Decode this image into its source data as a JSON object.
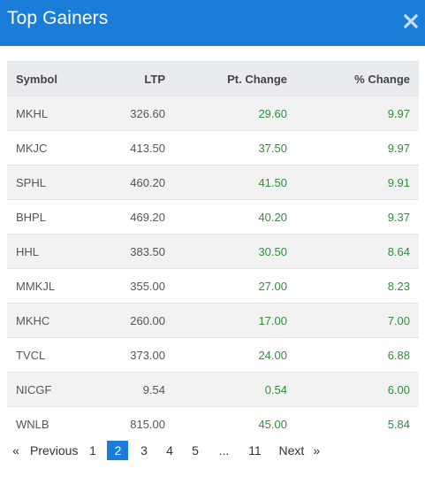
{
  "modal": {
    "title": "Top Gainers",
    "header_color": "#1a7dd7",
    "close_icon": "close-icon"
  },
  "table": {
    "headers": {
      "symbol": "Symbol",
      "ltp": "LTP",
      "pt_change": "Pt. Change",
      "pct_change": "% Change"
    },
    "positive_color": "#2f8f3a",
    "rows": [
      {
        "symbol": "MKHL",
        "ltp": "326.60",
        "pt_change": "29.60",
        "pct_change": "9.97"
      },
      {
        "symbol": "MKJC",
        "ltp": "413.50",
        "pt_change": "37.50",
        "pct_change": "9.97"
      },
      {
        "symbol": "SPHL",
        "ltp": "460.20",
        "pt_change": "41.50",
        "pct_change": "9.91"
      },
      {
        "symbol": "BHPL",
        "ltp": "469.20",
        "pt_change": "40.20",
        "pct_change": "9.37"
      },
      {
        "symbol": "HHL",
        "ltp": "383.50",
        "pt_change": "30.50",
        "pct_change": "8.64"
      },
      {
        "symbol": "MMKJL",
        "ltp": "355.00",
        "pt_change": "27.00",
        "pct_change": "8.23"
      },
      {
        "symbol": "MKHC",
        "ltp": "260.00",
        "pt_change": "17.00",
        "pct_change": "7.00"
      },
      {
        "symbol": "TVCL",
        "ltp": "373.00",
        "pt_change": "24.00",
        "pct_change": "6.88"
      },
      {
        "symbol": "NICGF",
        "ltp": "9.54",
        "pt_change": "0.54",
        "pct_change": "6.00"
      },
      {
        "symbol": "WNLB",
        "ltp": "815.00",
        "pt_change": "45.00",
        "pct_change": "5.84"
      }
    ]
  },
  "pagination": {
    "first_arrow": "«",
    "previous": "Previous",
    "pages": [
      "1",
      "2",
      "3",
      "4",
      "5"
    ],
    "current_page": "2",
    "ellipsis": "...",
    "last_page": "11",
    "next": "Next",
    "last_arrow": "»"
  }
}
